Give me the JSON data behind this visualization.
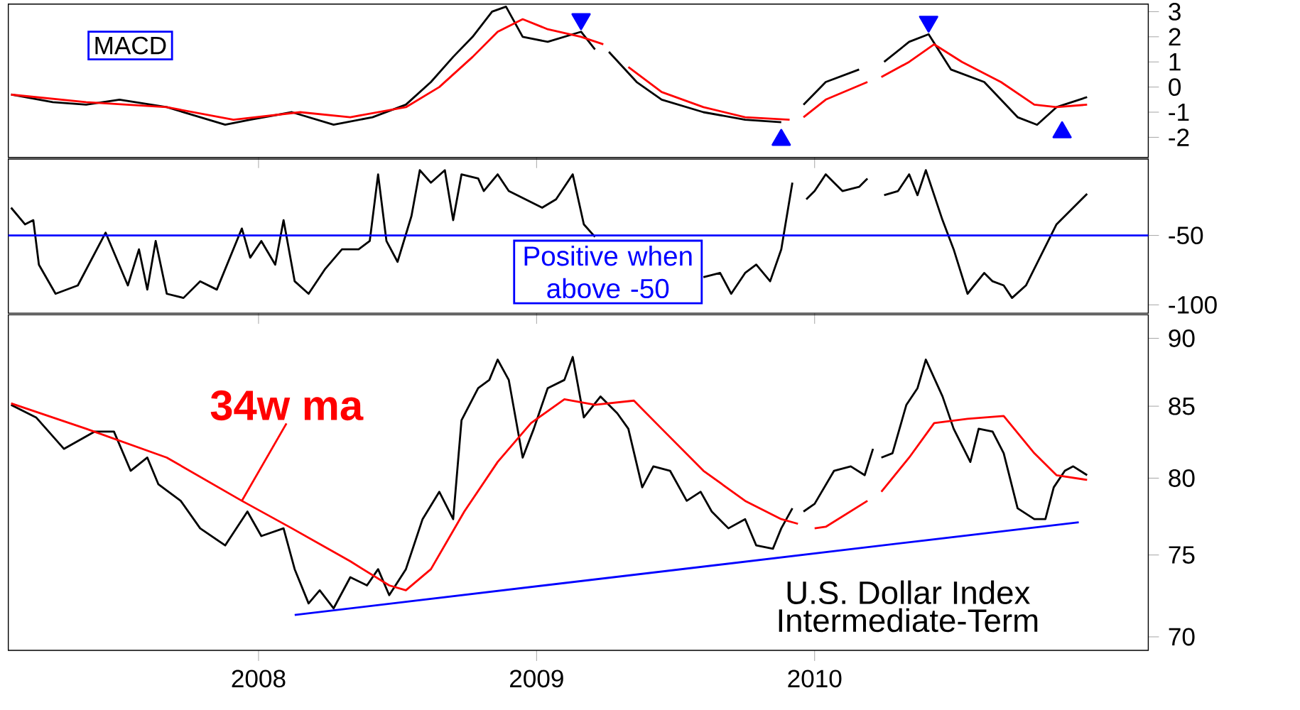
{
  "chart_data": [
    {
      "type": "line",
      "title": "MACD",
      "xlim": [
        2007.1,
        2011.2
      ],
      "ylim": [
        -2.8,
        3.3
      ],
      "xticks": [
        2008,
        2009,
        2010
      ],
      "yticks": [
        -2,
        -1,
        0,
        1,
        2,
        3
      ],
      "tick_labels": "y",
      "series": [
        {
          "color": "#000000",
          "x": [
            2007.11,
            2007.26,
            2007.38,
            2007.5,
            2007.67,
            2007.88,
            2007.97,
            2008.12,
            2008.27,
            2008.41,
            2008.53,
            2008.62,
            2008.7,
            2008.77,
            2008.84,
            2008.89,
            2008.95,
            2009.04,
            2009.16,
            2009.21,
            2009.24,
            2009.26,
            2009.36,
            2009.45,
            2009.6,
            2009.75,
            2009.88,
            2009.93,
            2009.96,
            2010.04,
            2010.16,
            2010.2,
            2010.25,
            2010.34,
            2010.41,
            2010.49,
            2010.61,
            2010.73,
            2010.8,
            2010.87,
            2010.98
          ],
          "values": [
            -0.3,
            -0.6,
            -0.7,
            -0.5,
            -0.8,
            -1.5,
            -1.3,
            -1.0,
            -1.5,
            -1.2,
            -0.7,
            0.2,
            1.2,
            2.0,
            3.0,
            3.2,
            2.0,
            1.8,
            2.2,
            1.5,
            null,
            1.4,
            0.2,
            -0.5,
            -1.0,
            -1.3,
            -1.4,
            null,
            -0.7,
            0.2,
            0.7,
            null,
            1.0,
            1.8,
            2.1,
            0.7,
            0.2,
            -1.2,
            -1.5,
            -0.8,
            -0.4
          ]
        },
        {
          "color": "#ff0000",
          "x": [
            2007.11,
            2007.38,
            2007.67,
            2007.91,
            2008.15,
            2008.33,
            2008.53,
            2008.65,
            2008.77,
            2008.86,
            2008.95,
            2009.04,
            2009.16,
            2009.24,
            2009.3,
            2009.33,
            2009.45,
            2009.6,
            2009.75,
            2009.91,
            2009.94,
            2009.96,
            2010.04,
            2010.19,
            2010.22,
            2010.24,
            2010.34,
            2010.43,
            2010.53,
            2010.67,
            2010.79,
            2010.87,
            2010.98
          ],
          "values": [
            -0.3,
            -0.6,
            -0.8,
            -1.3,
            -1.0,
            -1.2,
            -0.8,
            0.0,
            1.2,
            2.2,
            2.7,
            2.3,
            2.0,
            1.7,
            null,
            0.8,
            -0.2,
            -0.8,
            -1.2,
            -1.3,
            null,
            -1.2,
            -0.5,
            0.2,
            null,
            0.4,
            1.0,
            1.7,
            1.0,
            0.2,
            -0.7,
            -0.8,
            -0.7
          ]
        },
        {
          "type": "scatter",
          "marker": "triangle",
          "color": "#0000ff",
          "x": [
            2009.16,
            2010.41
          ],
          "values": [
            2.7,
            2.6
          ]
        },
        {
          "type": "scatter",
          "marker": "triangle",
          "color": "#0000ff",
          "x": [
            2009.88,
            2010.89
          ],
          "values": [
            -2.1,
            -1.8
          ]
        }
      ]
    },
    {
      "type": "line",
      "xlim": [
        2007.1,
        2011.2
      ],
      "ylim": [
        -106,
        5
      ],
      "xticks": [
        2008,
        2009,
        2010
      ],
      "yticks": [
        -50,
        -100
      ],
      "tick_labels": "y",
      "ref_lines": [
        {
          "axis": "y",
          "value": -50,
          "label": "Positive when above -50",
          "color": "#0000ff"
        }
      ],
      "series": [
        {
          "color": "#000000",
          "x": [
            2007.11,
            2007.16,
            2007.19,
            2007.21,
            2007.27,
            2007.35,
            2007.45,
            2007.53,
            2007.57,
            2007.6,
            2007.63,
            2007.67,
            2007.73,
            2007.79,
            2007.85,
            2007.94,
            2007.97,
            2008.01,
            2008.06,
            2008.09,
            2008.13,
            2008.18,
            2008.24,
            2008.3,
            2008.36,
            2008.4,
            2008.43,
            2008.46,
            2008.5,
            2008.55,
            2008.58,
            2008.62,
            2008.67,
            2008.7,
            2008.73,
            2008.79,
            2008.81,
            2008.86,
            2008.9,
            2009.02,
            2009.07,
            2009.13,
            2009.17,
            2009.21,
            2009.4,
            2009.6,
            2009.66,
            2009.7,
            2009.75,
            2009.79,
            2009.84,
            2009.88,
            2009.92,
            2009.94,
            2009.97,
            2010.0,
            2010.04,
            2010.1,
            2010.16,
            2010.19,
            2010.22,
            2010.25,
            2010.3,
            2010.34,
            2010.37,
            2010.4,
            2010.46,
            2010.5,
            2010.55,
            2010.61,
            2010.64,
            2010.68,
            2010.71,
            2010.76,
            2010.81,
            2010.87,
            2010.93,
            2010.98
          ],
          "values": [
            -30,
            -42,
            -39,
            -71,
            -92,
            -86,
            -48,
            -86,
            -60,
            -89,
            -54,
            -92,
            -95,
            -83,
            -89,
            -45,
            -66,
            -54,
            -71,
            -39,
            -83,
            -92,
            -74,
            -60,
            -60,
            -54,
            -6,
            -54,
            -69,
            -36,
            -3,
            -12,
            -3,
            -39,
            -6,
            -9,
            -18,
            -6,
            -18,
            -30,
            -24,
            -6,
            -42,
            -51,
            null,
            -80,
            -77,
            -92,
            -77,
            -71,
            -83,
            -60,
            -12,
            null,
            -24,
            -18,
            -6,
            -18,
            -15,
            -9,
            null,
            -21,
            -18,
            -6,
            -21,
            -3,
            -39,
            -60,
            -92,
            -77,
            -83,
            -86,
            -95,
            -86,
            -66,
            -42,
            -30,
            -20
          ]
        }
      ]
    },
    {
      "type": "line",
      "title": "U.S. Dollar Index",
      "subtitle": "Intermediate-Term",
      "log": "y",
      "xlim": [
        2007.1,
        2011.2
      ],
      "ylim": [
        69.2,
        91.8
      ],
      "xticks": [
        2008,
        2009,
        2010
      ],
      "yticks": [
        70,
        75,
        80,
        85,
        90
      ],
      "series": [
        {
          "color": "#000000",
          "x": [
            2007.11,
            2007.2,
            2007.3,
            2007.41,
            2007.48,
            2007.54,
            2007.6,
            2007.64,
            2007.72,
            2007.79,
            2007.88,
            2007.96,
            2008.01,
            2008.09,
            2008.13,
            2008.18,
            2008.22,
            2008.27,
            2008.33,
            2008.39,
            2008.43,
            2008.47,
            2008.53,
            2008.59,
            2008.65,
            2008.7,
            2008.73,
            2008.79,
            2008.83,
            2008.86,
            2008.9,
            2008.95,
            2008.99,
            2009.04,
            2009.1,
            2009.13,
            2009.17,
            2009.23,
            2009.29,
            2009.33,
            2009.38,
            2009.42,
            2009.48,
            2009.54,
            2009.59,
            2009.63,
            2009.69,
            2009.75,
            2009.79,
            2009.85,
            2009.88,
            2009.92,
            2009.94,
            2009.96,
            2010.0,
            2010.07,
            2010.13,
            2010.18,
            2010.21,
            2010.22,
            2010.24,
            2010.28,
            2010.33,
            2010.37,
            2010.4,
            2010.46,
            2010.5,
            2010.56,
            2010.59,
            2010.64,
            2010.68,
            2010.73,
            2010.79,
            2010.83,
            2010.86,
            2010.9,
            2010.93,
            2010.98
          ],
          "values": [
            85.1,
            84.2,
            82.0,
            83.2,
            83.2,
            80.5,
            81.4,
            79.6,
            78.5,
            76.7,
            75.6,
            77.8,
            76.2,
            76.7,
            74.1,
            72.0,
            72.8,
            71.7,
            73.6,
            73.1,
            74.1,
            72.5,
            74.1,
            77.3,
            79.1,
            77.3,
            84.0,
            86.3,
            86.9,
            88.4,
            86.9,
            81.4,
            83.4,
            86.3,
            86.9,
            88.6,
            84.2,
            85.7,
            84.5,
            83.4,
            79.4,
            80.8,
            80.5,
            78.5,
            79.1,
            77.8,
            76.7,
            77.3,
            75.6,
            75.4,
            76.7,
            78.0,
            null,
            77.8,
            78.3,
            80.5,
            80.8,
            80.2,
            82.0,
            null,
            81.4,
            81.7,
            85.1,
            86.3,
            88.4,
            85.7,
            83.4,
            81.1,
            83.4,
            83.2,
            81.7,
            78.0,
            77.3,
            77.3,
            79.4,
            80.5,
            80.8,
            80.2
          ]
        },
        {
          "name": "34w ma",
          "color": "#ff0000",
          "x": [
            2007.11,
            2007.38,
            2007.67,
            2007.94,
            2008.12,
            2008.33,
            2008.47,
            2008.53,
            2008.62,
            2008.74,
            2008.86,
            2008.98,
            2009.1,
            2009.21,
            2009.35,
            2009.45,
            2009.6,
            2009.75,
            2009.88,
            2009.94,
            2009.95,
            2010.0,
            2010.04,
            2010.19,
            2010.22,
            2010.24,
            2010.34,
            2010.43,
            2010.55,
            2010.68,
            2010.79,
            2010.87,
            2010.98
          ],
          "values": [
            85.2,
            83.4,
            81.4,
            78.5,
            76.7,
            74.6,
            73.1,
            72.8,
            74.1,
            77.8,
            81.1,
            83.8,
            85.5,
            85.1,
            85.4,
            83.4,
            80.5,
            78.5,
            77.3,
            77.0,
            null,
            76.7,
            76.8,
            78.5,
            null,
            79.1,
            81.4,
            83.8,
            84.1,
            84.3,
            81.7,
            80.2,
            79.9
          ]
        },
        {
          "color": "#0000ff",
          "x": [
            2008.13,
            2010.95
          ],
          "values": [
            71.3,
            77.1
          ]
        }
      ]
    }
  ]
}
